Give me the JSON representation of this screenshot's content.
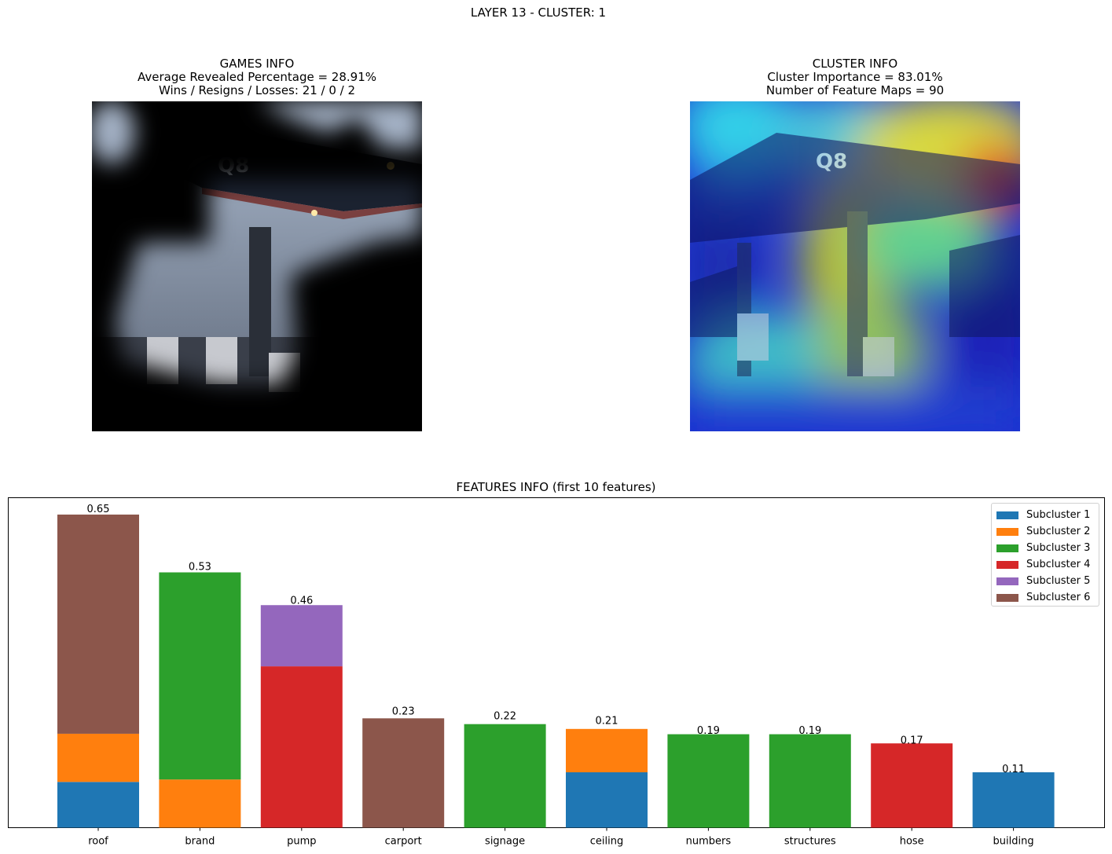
{
  "suptitle": "LAYER 13 - CLUSTER: 1",
  "games_info": {
    "title": "GAMES INFO",
    "line1": "Average Revealed Percentage = 28.91%",
    "line2": "Wins / Resigns / Losses: 21 / 0 / 2",
    "image_sign": "Q8"
  },
  "cluster_info": {
    "title": "CLUSTER INFO",
    "line1": "Cluster Importance = 83.01%",
    "line2": "Number of Feature Maps = 90",
    "image_sign": "Q8"
  },
  "features_title": "FEATURES INFO (first 10 features)",
  "chart_data": {
    "type": "bar",
    "stacked": true,
    "title": "FEATURES INFO (first 10 features)",
    "categories": [
      "roof",
      "brand",
      "pump",
      "carport",
      "signage",
      "ceiling",
      "numbers",
      "structures",
      "hose",
      "building"
    ],
    "totals": [
      0.65,
      0.53,
      0.46,
      0.23,
      0.22,
      0.21,
      0.19,
      0.19,
      0.17,
      0.11
    ],
    "total_labels": [
      "0.65",
      "0.53",
      "0.46",
      "0.23",
      "0.22",
      "0.21",
      "0.19",
      "0.19",
      "0.17",
      "0.11"
    ],
    "series": [
      {
        "name": "Subcluster 1",
        "color": "#1f77b4",
        "values": [
          0.095,
          0,
          0,
          0,
          0,
          0.115,
          0,
          0,
          0,
          0.115
        ]
      },
      {
        "name": "Subcluster 2",
        "color": "#ff7f0e",
        "values": [
          0.1,
          0.1,
          0,
          0,
          0,
          0.09,
          0,
          0,
          0,
          0
        ]
      },
      {
        "name": "Subcluster 3",
        "color": "#2ca02c",
        "values": [
          0,
          0.43,
          0,
          0,
          0.215,
          0,
          0.194,
          0.194,
          0,
          0
        ]
      },
      {
        "name": "Subcluster 4",
        "color": "#d62728",
        "values": [
          0,
          0,
          0.335,
          0,
          0,
          0,
          0,
          0,
          0.175,
          0
        ]
      },
      {
        "name": "Subcluster 5",
        "color": "#9467bd",
        "values": [
          0,
          0,
          0.127,
          0,
          0,
          0,
          0,
          0,
          0,
          0
        ]
      },
      {
        "name": "Subcluster 6",
        "color": "#8c564b",
        "values": [
          0.455,
          0,
          0,
          0.227,
          0,
          0,
          0,
          0,
          0,
          0
        ]
      }
    ],
    "ylim": [
      0,
      0.685
    ],
    "yticks_visible": false,
    "grid": false,
    "legend_position": "upper right"
  }
}
